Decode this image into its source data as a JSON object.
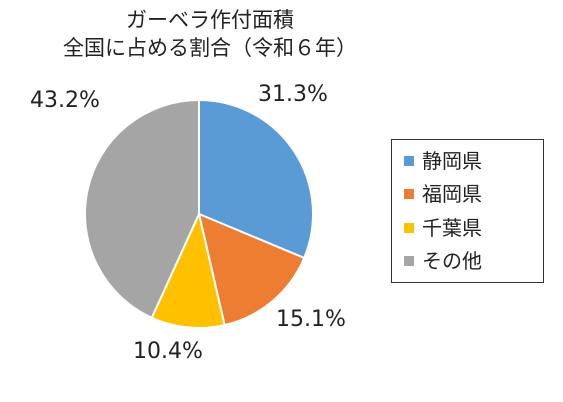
{
  "chart_data": {
    "type": "pie",
    "title": [
      "ガーベラ作付面積",
      "全国に占める割合（令和６年）"
    ],
    "categories": [
      "静岡県",
      "福岡県",
      "千葉県",
      "その他"
    ],
    "values": [
      31.3,
      15.1,
      10.4,
      43.2
    ],
    "value_labels": [
      "31.3%",
      "15.1%",
      "10.4%",
      "43.2%"
    ],
    "colors": [
      "#5B9BD5",
      "#ED7D31",
      "#FFC000",
      "#A5A5A5"
    ],
    "start_angle": "12 o'clock",
    "direction": "clockwise",
    "legend_position": "right"
  }
}
